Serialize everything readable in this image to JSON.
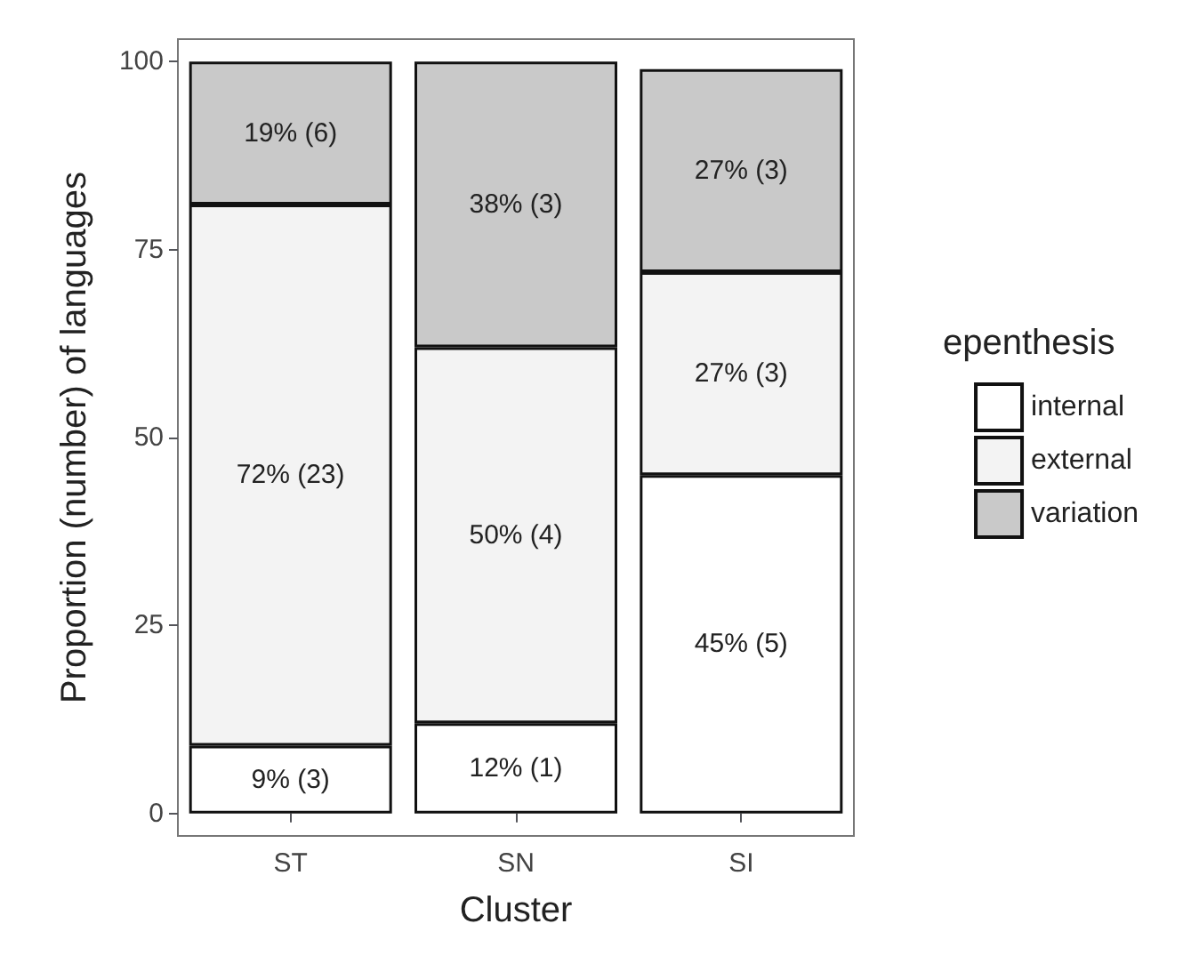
{
  "chart_data": {
    "type": "bar",
    "stacked": true,
    "xlabel": "Cluster",
    "ylabel": "Proportion (number) of languages",
    "legend_title": "epenthesis",
    "legend": "right",
    "grid": false,
    "categories": [
      "ST",
      "SN",
      "SI"
    ],
    "series": [
      {
        "name": "internal",
        "color": "#ffffff",
        "values": [
          9,
          12,
          45
        ],
        "value_labels": [
          "9% (3)",
          "12% (1)",
          "45% (5)"
        ]
      },
      {
        "name": "external",
        "color": "#f3f3f3",
        "values": [
          72,
          50,
          27
        ],
        "value_labels": [
          "72% (23)",
          "50% (4)",
          "27% (3)"
        ]
      },
      {
        "name": "variation",
        "color": "#c9c9c9",
        "values": [
          19,
          38,
          27
        ],
        "value_labels": [
          "19% (6)",
          "38% (3)",
          "27% (3)"
        ]
      }
    ],
    "ylim": [
      -3,
      103
    ],
    "yticks": [
      0,
      25,
      50,
      75,
      100
    ]
  }
}
